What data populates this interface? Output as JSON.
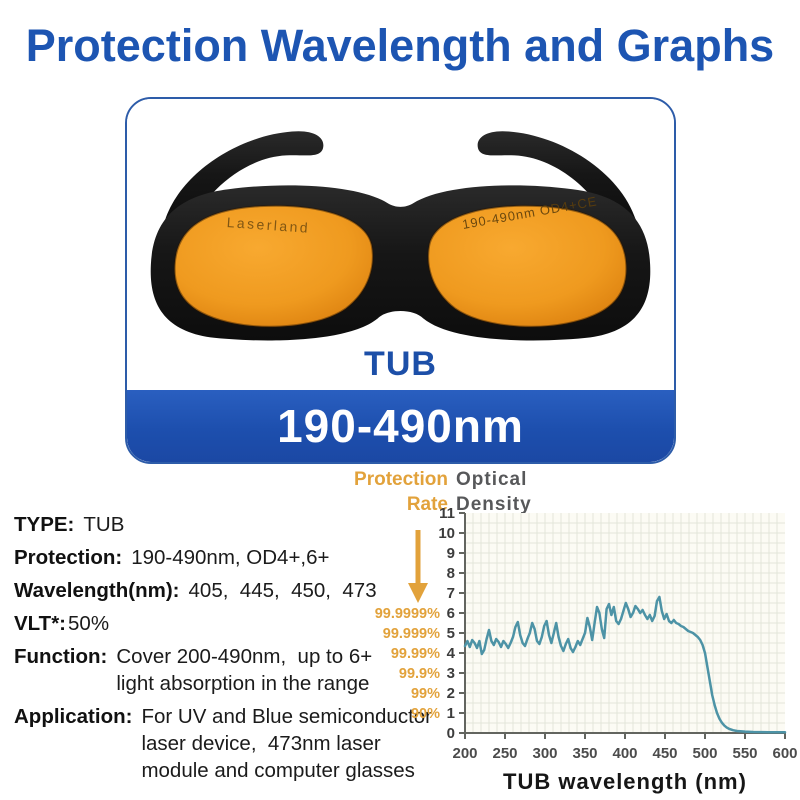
{
  "title": "Protection Wavelength and Graphs",
  "product": {
    "model": "TUB",
    "range_banner": "190-490nm",
    "brand_on_lens": "Laserland",
    "lens_marking": "190-490nm OD4+CE"
  },
  "specs": [
    {
      "label": "TYPE:",
      "value": "TUB"
    },
    {
      "label": "Protection:",
      "value": "190-490nm, OD4+,6+"
    },
    {
      "label": "Wavelength(nm):",
      "value": "405,  445,  450,  473"
    },
    {
      "label": "VLT*:",
      "value": "50%"
    },
    {
      "label": "Function:",
      "value": "Cover 200-490nm,  up to 6+\nlight absorption in the range"
    },
    {
      "label": "Application:",
      "value": "For UV and Blue semiconductor\nlaser device,  473nm laser\nmodule and computer glasses"
    }
  ],
  "chart_data": {
    "type": "line",
    "rate_title": "Protection\nRate",
    "od_title": "Optical\nDensity",
    "xlabel": "TUB wavelength (nm)",
    "xlim": [
      200,
      600
    ],
    "ylim": [
      0,
      11
    ],
    "x_ticks": [
      200,
      250,
      300,
      350,
      400,
      450,
      500,
      550,
      600
    ],
    "y_ticks": [
      0,
      1,
      2,
      3,
      4,
      5,
      6,
      7,
      8,
      9,
      10,
      11
    ],
    "protection_rate_labels": [
      {
        "od": 6,
        "label": "99.9999%"
      },
      {
        "od": 5,
        "label": "99.999%"
      },
      {
        "od": 4,
        "label": "99.99%"
      },
      {
        "od": 3,
        "label": "99.9%"
      },
      {
        "od": 2,
        "label": "99%"
      },
      {
        "od": 1,
        "label": "90%"
      }
    ],
    "grid_on": true,
    "line_color": "#4d93a6",
    "grid_color": "#e3e6da",
    "plot_bg": "#fcfbf4",
    "axis_color": "#63655f",
    "arrow_color": "#e2a23b",
    "series": [
      {
        "name": "TUB optical density",
        "points": [
          [
            200,
            4.35
          ],
          [
            203,
            4.6
          ],
          [
            206,
            4.3
          ],
          [
            209,
            4.65
          ],
          [
            212,
            4.5
          ],
          [
            215,
            4.25
          ],
          [
            218,
            4.6
          ],
          [
            221,
            3.95
          ],
          [
            224,
            4.15
          ],
          [
            227,
            4.7
          ],
          [
            230,
            5.15
          ],
          [
            233,
            4.6
          ],
          [
            236,
            4.4
          ],
          [
            239,
            4.7
          ],
          [
            242,
            4.55
          ],
          [
            245,
            4.3
          ],
          [
            248,
            4.6
          ],
          [
            251,
            4.45
          ],
          [
            254,
            4.25
          ],
          [
            257,
            4.5
          ],
          [
            260,
            4.8
          ],
          [
            263,
            5.3
          ],
          [
            266,
            5.55
          ],
          [
            269,
            4.9
          ],
          [
            272,
            4.5
          ],
          [
            275,
            4.35
          ],
          [
            278,
            4.7
          ],
          [
            281,
            5.0
          ],
          [
            284,
            5.5
          ],
          [
            287,
            5.2
          ],
          [
            290,
            4.6
          ],
          [
            293,
            4.45
          ],
          [
            296,
            4.8
          ],
          [
            299,
            5.35
          ],
          [
            302,
            5.6
          ],
          [
            305,
            4.9
          ],
          [
            308,
            4.5
          ],
          [
            311,
            5.0
          ],
          [
            314,
            5.5
          ],
          [
            317,
            4.8
          ],
          [
            320,
            4.35
          ],
          [
            323,
            4.1
          ],
          [
            326,
            4.45
          ],
          [
            329,
            4.7
          ],
          [
            332,
            4.25
          ],
          [
            335,
            4.05
          ],
          [
            338,
            4.3
          ],
          [
            341,
            4.6
          ],
          [
            344,
            4.4
          ],
          [
            347,
            4.7
          ],
          [
            350,
            5.0
          ],
          [
            353,
            5.75
          ],
          [
            356,
            5.3
          ],
          [
            359,
            4.65
          ],
          [
            362,
            5.5
          ],
          [
            365,
            6.3
          ],
          [
            368,
            6.0
          ],
          [
            371,
            5.2
          ],
          [
            374,
            4.75
          ],
          [
            377,
            6.2
          ],
          [
            380,
            6.45
          ],
          [
            383,
            5.9
          ],
          [
            386,
            6.3
          ],
          [
            389,
            5.6
          ],
          [
            392,
            5.45
          ],
          [
            395,
            5.7
          ],
          [
            398,
            6.1
          ],
          [
            401,
            6.5
          ],
          [
            404,
            6.2
          ],
          [
            407,
            5.8
          ],
          [
            410,
            6.0
          ],
          [
            413,
            6.35
          ],
          [
            416,
            6.2
          ],
          [
            419,
            6.0
          ],
          [
            422,
            6.15
          ],
          [
            425,
            5.9
          ],
          [
            428,
            5.7
          ],
          [
            431,
            5.9
          ],
          [
            434,
            5.6
          ],
          [
            437,
            5.85
          ],
          [
            440,
            6.6
          ],
          [
            443,
            6.8
          ],
          [
            446,
            6.1
          ],
          [
            449,
            5.7
          ],
          [
            452,
            5.95
          ],
          [
            455,
            5.6
          ],
          [
            458,
            5.5
          ],
          [
            461,
            5.65
          ],
          [
            464,
            5.5
          ],
          [
            467,
            5.45
          ],
          [
            470,
            5.35
          ],
          [
            473,
            5.3
          ],
          [
            476,
            5.2
          ],
          [
            479,
            5.1
          ],
          [
            482,
            5.05
          ],
          [
            485,
            5.0
          ],
          [
            488,
            4.9
          ],
          [
            491,
            4.8
          ],
          [
            494,
            4.65
          ],
          [
            497,
            4.4
          ],
          [
            500,
            4.0
          ],
          [
            503,
            3.3
          ],
          [
            506,
            2.6
          ],
          [
            509,
            1.9
          ],
          [
            512,
            1.4
          ],
          [
            515,
            1.0
          ],
          [
            518,
            0.72
          ],
          [
            521,
            0.52
          ],
          [
            524,
            0.38
          ],
          [
            527,
            0.28
          ],
          [
            530,
            0.21
          ],
          [
            535,
            0.14
          ],
          [
            540,
            0.1
          ],
          [
            550,
            0.07
          ],
          [
            560,
            0.05
          ],
          [
            580,
            0.04
          ],
          [
            600,
            0.04
          ]
        ]
      }
    ]
  },
  "colors": {
    "title_blue": "#1d55b2",
    "banner_blue": "#1d4fae",
    "model_blue": "#1c4fa8",
    "accent_orange": "#e2a23b",
    "line_teal": "#4d93a6",
    "lens_orange": "#ef9a1f"
  }
}
